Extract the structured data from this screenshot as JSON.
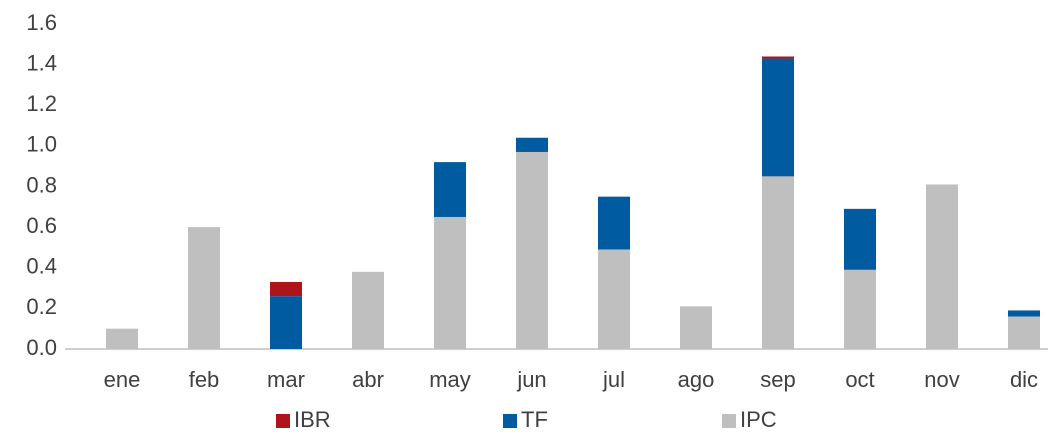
{
  "chart_data": {
    "type": "stacked-bar",
    "categories": [
      "ene",
      "feb",
      "mar",
      "abr",
      "may",
      "jun",
      "jul",
      "ago",
      "sep",
      "oct",
      "nov",
      "dic"
    ],
    "series": [
      {
        "name": "IPC",
        "color": "#bfbfbf",
        "values": [
          0.1,
          0.6,
          0,
          0.38,
          0.65,
          0.97,
          0.49,
          0.21,
          0.85,
          0.39,
          0.81,
          0.16
        ]
      },
      {
        "name": "TF",
        "color": "#005ba0",
        "values": [
          0,
          0,
          0.26,
          0,
          0.27,
          0.07,
          0.26,
          0,
          0.58,
          0.3,
          0,
          0.03
        ]
      },
      {
        "name": "IBR",
        "color": "#b0141b",
        "values": [
          0,
          0,
          0.07,
          0,
          0,
          0,
          0,
          0,
          0.01,
          0,
          0,
          0
        ]
      }
    ],
    "legend_order": [
      "IBR",
      "TF",
      "IPC"
    ],
    "ylim": [
      0,
      1.6
    ],
    "yticks": [
      {
        "value": 0,
        "label": "0.0"
      },
      0.2,
      0.4,
      0.6,
      0.8,
      {
        "value": 1,
        "label": "1.0"
      },
      1.2,
      1.4,
      1.6
    ],
    "grid": false
  }
}
